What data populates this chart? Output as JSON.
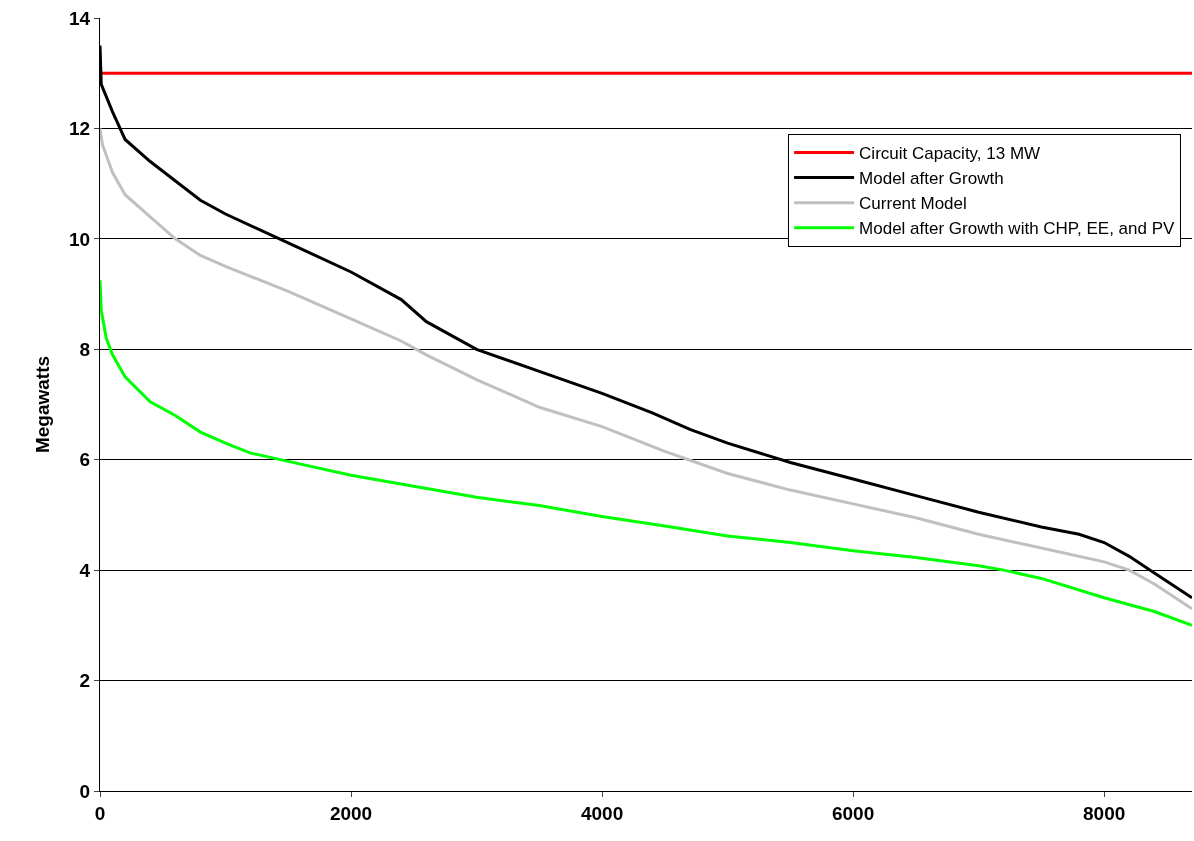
{
  "chart_data": {
    "type": "line",
    "ylabel": "Megawatts",
    "xlim": [
      0,
      8700
    ],
    "xticks": [
      0,
      2000,
      4000,
      6000,
      8000
    ],
    "ylim": [
      0,
      14
    ],
    "yticks": [
      0,
      2,
      4,
      6,
      8,
      10,
      12,
      14
    ],
    "grid": "y",
    "legend": "top right",
    "marker": "none",
    "line_style": "solid",
    "series": [
      {
        "name": "Circuit Capacity, 13 MW",
        "color": "#ff0000",
        "x": [
          0,
          8700
        ],
        "values": [
          13,
          13
        ]
      },
      {
        "name": "Model after Growth",
        "color": "#000000",
        "x": [
          0,
          10,
          100,
          200,
          400,
          800,
          1000,
          1430,
          2000,
          2400,
          2600,
          3000,
          3500,
          4000,
          4400,
          4700,
          5000,
          5500,
          6000,
          6500,
          7000,
          7500,
          7800,
          8000,
          8200,
          8400,
          8600,
          8700
        ],
        "values": [
          13.5,
          12.8,
          12.3,
          11.8,
          11.4,
          10.7,
          10.45,
          10.0,
          9.4,
          8.9,
          8.5,
          8.0,
          7.6,
          7.2,
          6.85,
          6.55,
          6.3,
          5.95,
          5.65,
          5.35,
          5.05,
          4.78,
          4.65,
          4.5,
          4.25,
          3.95,
          3.65,
          3.5
        ]
      },
      {
        "name": "Current Model",
        "color": "#c0c0c0",
        "x": [
          0,
          20,
          100,
          200,
          400,
          600,
          800,
          1000,
          1500,
          2000,
          2400,
          2600,
          3000,
          3500,
          4000,
          4500,
          5000,
          5500,
          6000,
          6500,
          7000,
          7500,
          8000,
          8200,
          8400,
          8600,
          8700
        ],
        "values": [
          12.0,
          11.7,
          11.2,
          10.8,
          10.4,
          10.0,
          9.7,
          9.5,
          9.05,
          8.55,
          8.15,
          7.9,
          7.45,
          6.95,
          6.6,
          6.15,
          5.75,
          5.45,
          5.2,
          4.95,
          4.65,
          4.4,
          4.15,
          4.0,
          3.75,
          3.45,
          3.3
        ]
      },
      {
        "name": "Model after Growth with CHP, EE, and PV",
        "color": "#00ff00",
        "x": [
          0,
          10,
          50,
          100,
          200,
          400,
          600,
          800,
          1000,
          1200,
          1500,
          2000,
          2500,
          3000,
          3500,
          4000,
          4500,
          5000,
          5500,
          6000,
          6500,
          7000,
          7200,
          7500,
          8000,
          8400,
          8700
        ],
        "values": [
          9.25,
          8.7,
          8.2,
          7.9,
          7.5,
          7.05,
          6.8,
          6.5,
          6.3,
          6.12,
          5.97,
          5.72,
          5.52,
          5.32,
          5.17,
          4.97,
          4.8,
          4.62,
          4.5,
          4.35,
          4.23,
          4.08,
          4.0,
          3.85,
          3.5,
          3.25,
          3.0
        ]
      }
    ]
  }
}
